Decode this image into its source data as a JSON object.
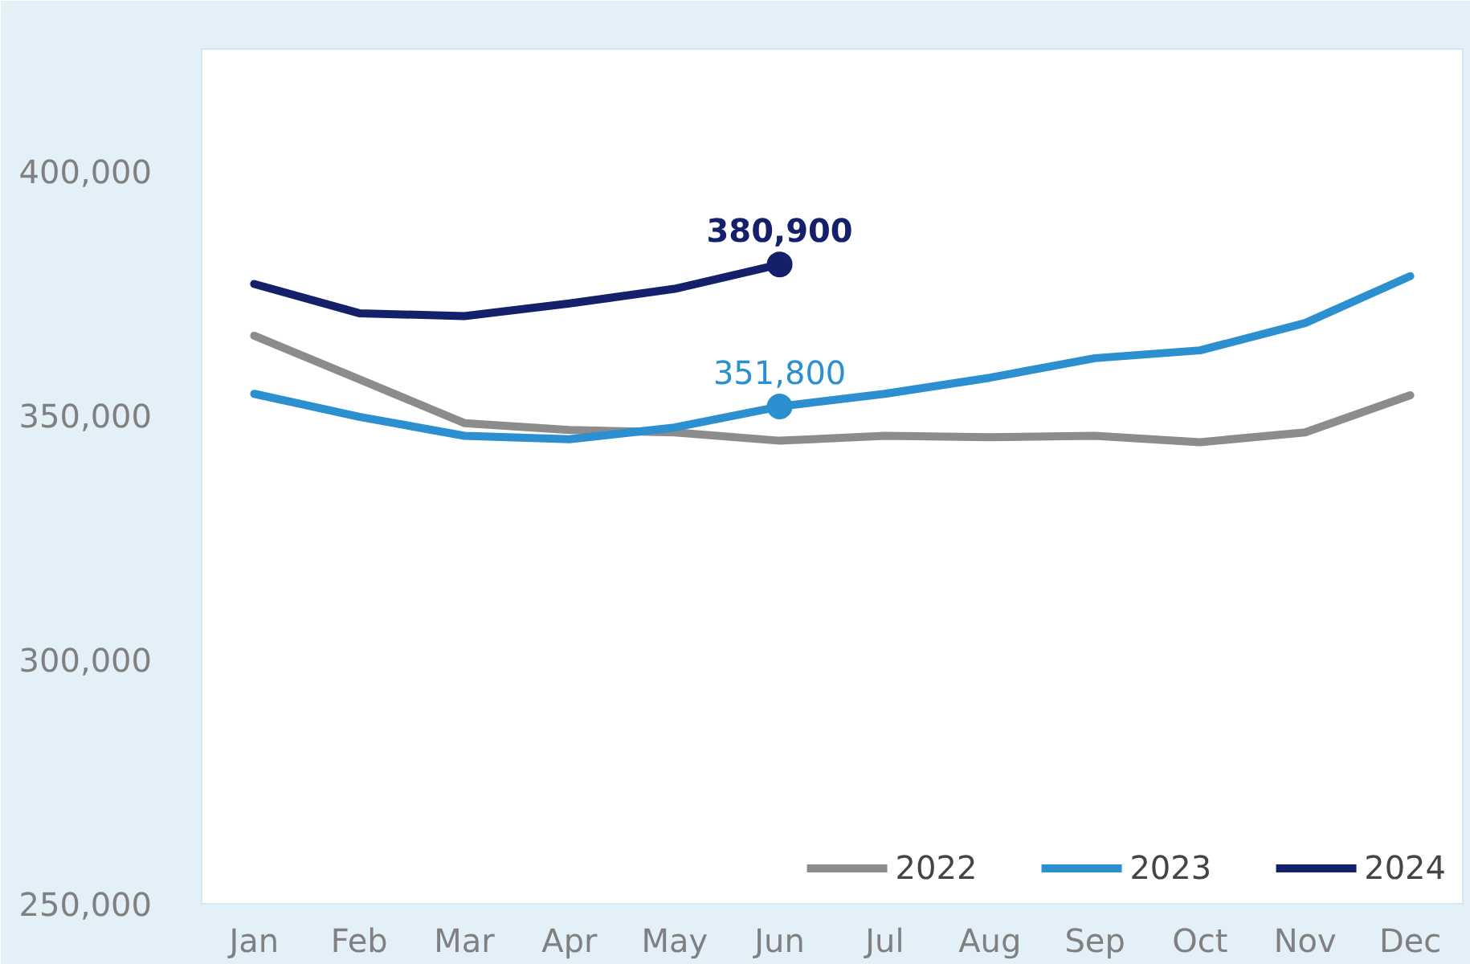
{
  "chart_data": {
    "type": "line",
    "categories": [
      "Jan",
      "Feb",
      "Mar",
      "Apr",
      "May",
      "Jun",
      "Jul",
      "Aug",
      "Sep",
      "Oct",
      "Nov",
      "Dec"
    ],
    "series": [
      {
        "name": "2022",
        "color": "#8c8c8c",
        "values": [
          366300,
          357400,
          348400,
          347000,
          346500,
          344800,
          345800,
          345500,
          345800,
          344500,
          346500,
          354100
        ]
      },
      {
        "name": "2023",
        "color": "#2b8fd0",
        "values": [
          354400,
          349700,
          345800,
          345100,
          347500,
          351800,
          354400,
          357700,
          361700,
          363300,
          368900,
          378500
        ],
        "value_labels": [
          null,
          null,
          null,
          null,
          null,
          "351,800",
          null,
          null,
          null,
          null,
          null,
          null
        ]
      },
      {
        "name": "2024",
        "color": "#15206b",
        "values": [
          376900,
          370900,
          370300,
          372900,
          375900,
          380900,
          null,
          null,
          null,
          null,
          null,
          null
        ],
        "value_labels": [
          null,
          null,
          null,
          null,
          null,
          "380,900",
          null,
          null,
          null,
          null,
          null,
          null
        ]
      }
    ],
    "ylim": [
      250000,
      425000
    ],
    "yticks": [
      {
        "value": 250000,
        "label": "250,000"
      },
      {
        "value": 300000,
        "label": "300,000"
      },
      {
        "value": 350000,
        "label": "350,000"
      },
      {
        "value": 400000,
        "label": "400,000"
      }
    ],
    "grid": false,
    "legend": "bottom right",
    "line_style": "solid",
    "marker": "none"
  }
}
